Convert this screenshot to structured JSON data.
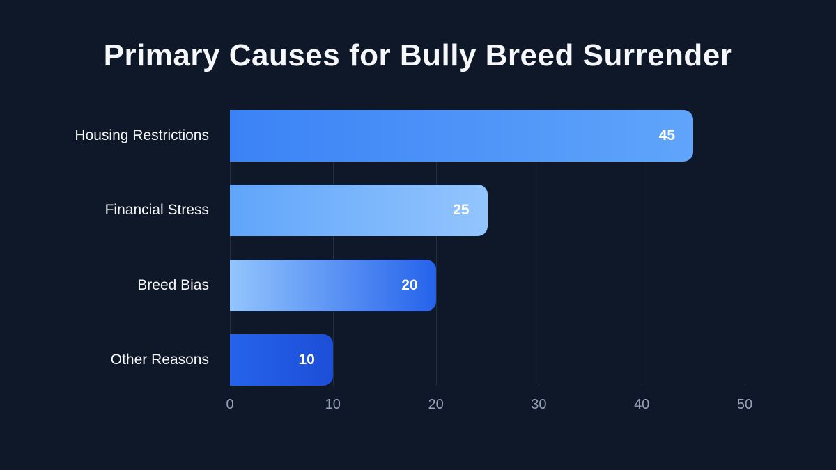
{
  "page": {
    "background_color": "#0f1828"
  },
  "header": {
    "title": "Primary Causes for Bully Breed Surrender"
  },
  "chart_data": {
    "type": "bar",
    "orientation": "horizontal",
    "title": "Primary Causes for Bully Breed Surrender",
    "categories": [
      "Housing Restrictions",
      "Financial Stress",
      "Breed Bias",
      "Other Reasons"
    ],
    "values": [
      45,
      25,
      20,
      10
    ],
    "value_labels": [
      "45",
      "25",
      "20",
      "10"
    ],
    "value_label_position": "inside-end",
    "xlabel": "",
    "ylabel": "",
    "xlim": [
      0,
      50
    ],
    "xticks": [
      0,
      10,
      20,
      30,
      40,
      50
    ],
    "grid": "vertical-only",
    "legend": "none",
    "bar_gradients": [
      {
        "from": "#3b82f6",
        "to": "#60a5fa"
      },
      {
        "from": "#60a5fa",
        "to": "#93c5fd"
      },
      {
        "from": "#93c5fd",
        "to": "#2563eb"
      },
      {
        "from": "#2563eb",
        "to": "#1d4ed8"
      }
    ],
    "colors": {
      "background": "#0f1828",
      "title_text": "#f5f7fa",
      "category_text": "#f5f7fa",
      "value_text": "#ffffff",
      "tick_text": "#94a3b8",
      "gridline": "rgba(148,163,184,0.16)"
    }
  }
}
